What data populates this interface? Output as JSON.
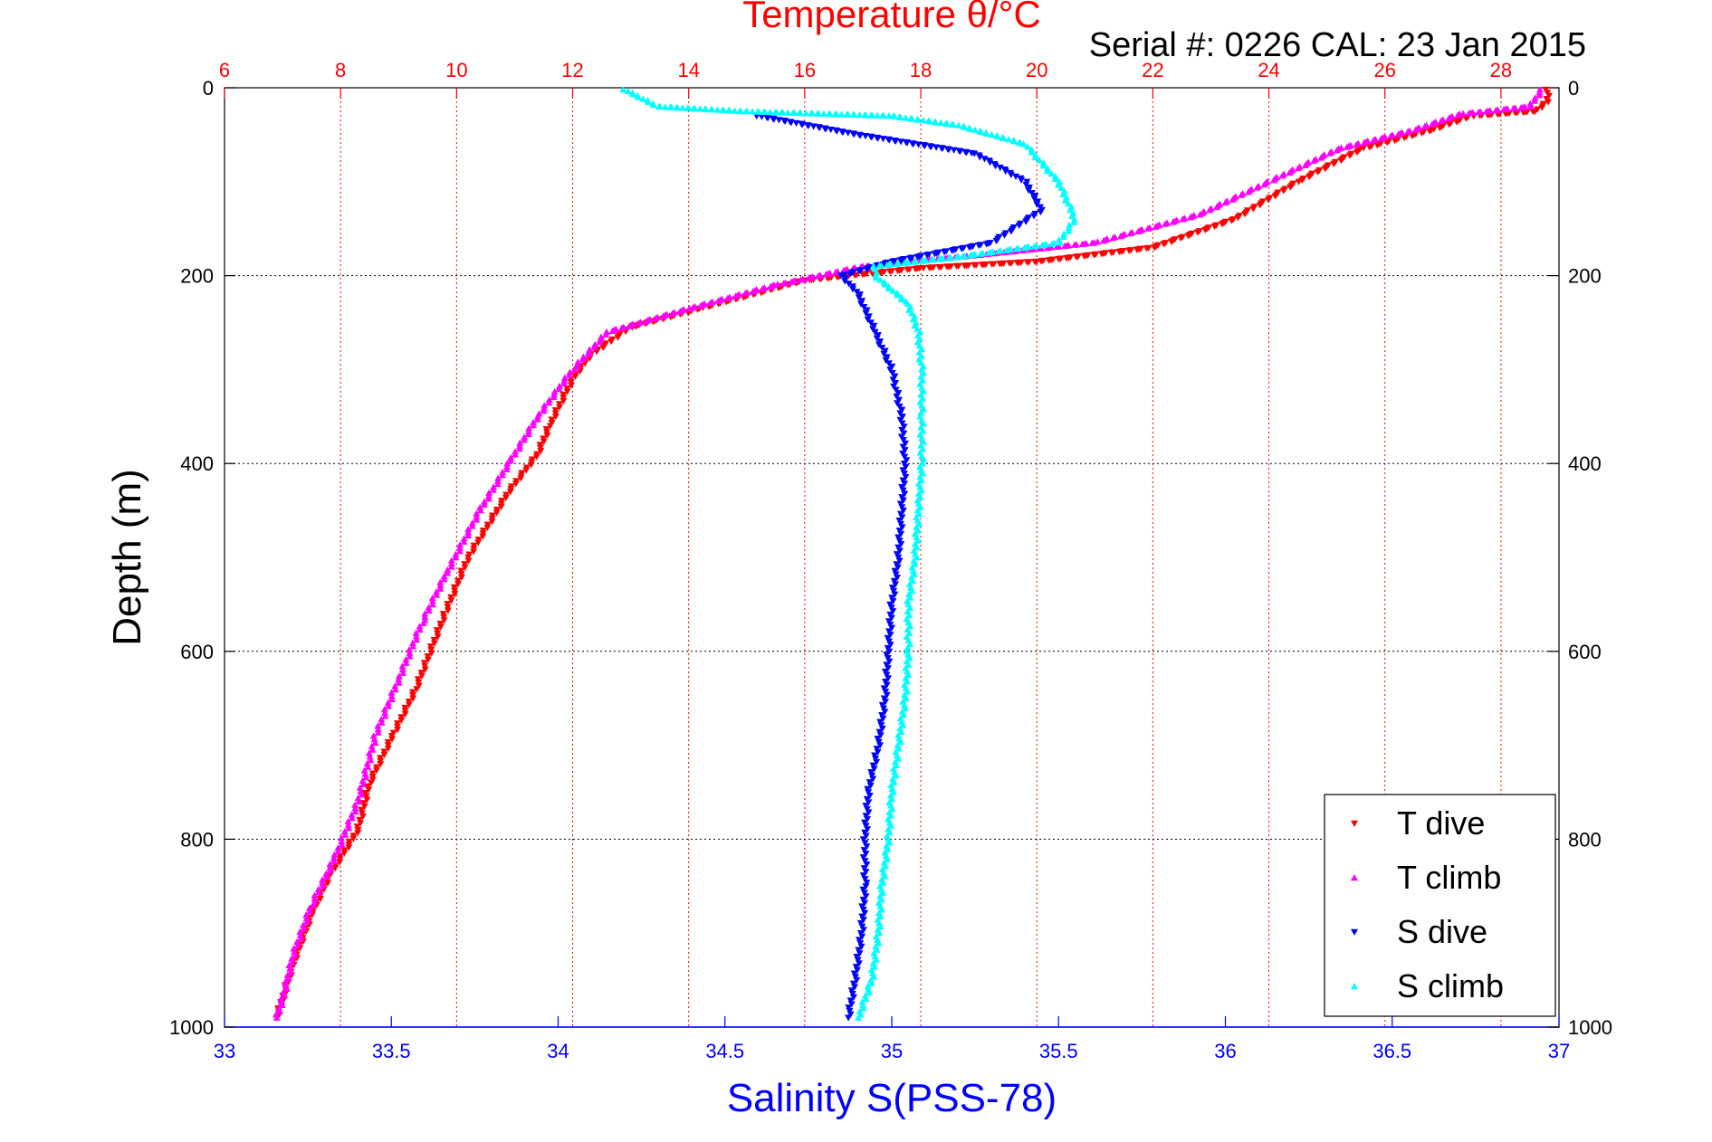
{
  "chart_data": {
    "type": "scatter",
    "title": "Temperature θ/°C",
    "subtitle": "Serial #: 0226  CAL: 23 Jan 2015",
    "xlabel": "Salinity S(PSS-78)",
    "ylabel": "Depth (m)",
    "x_bottom": {
      "label": "Salinity S(PSS-78)",
      "range": [
        33,
        37
      ],
      "ticks": [
        "33",
        "33.5",
        "34",
        "34.5",
        "35",
        "35.5",
        "36",
        "36.5",
        "37"
      ],
      "color": "#0000ff"
    },
    "x_top": {
      "label": "Temperature θ/°C",
      "range": [
        6,
        29
      ],
      "ticks": [
        "6",
        "8",
        "10",
        "12",
        "14",
        "16",
        "18",
        "20",
        "22",
        "24",
        "26",
        "28"
      ],
      "color": "#ff0000"
    },
    "y": {
      "label": "Depth (m)",
      "range": [
        0,
        1000
      ],
      "reversed": true,
      "ticks": [
        "0",
        "200",
        "400",
        "600",
        "800",
        "1000"
      ]
    },
    "grid": true,
    "legend_position": "bottom-right",
    "series": [
      {
        "name": "T dive",
        "axis": "temperature",
        "color": "#ff0000",
        "marker": "triangle-down",
        "points": [
          [
            28.8,
            2
          ],
          [
            28.8,
            15
          ],
          [
            28.6,
            25
          ],
          [
            27.5,
            30
          ],
          [
            26.8,
            45
          ],
          [
            25.6,
            65
          ],
          [
            24.5,
            100
          ],
          [
            23.4,
            140
          ],
          [
            22,
            170
          ],
          [
            20,
            185
          ],
          [
            18,
            192
          ],
          [
            16,
            205
          ],
          [
            14.2,
            235
          ],
          [
            13,
            255
          ],
          [
            12.3,
            285
          ],
          [
            12,
            310
          ],
          [
            11.6,
            360
          ],
          [
            11.4,
            390
          ],
          [
            10.9,
            430
          ],
          [
            10.2,
            500
          ],
          [
            9.8,
            560
          ],
          [
            9.3,
            640
          ],
          [
            8.9,
            690
          ],
          [
            8.5,
            740
          ],
          [
            8.3,
            790
          ],
          [
            7.8,
            840
          ],
          [
            7.5,
            880
          ],
          [
            7.2,
            930
          ],
          [
            7,
            970
          ],
          [
            6.9,
            990
          ]
        ]
      },
      {
        "name": "T climb",
        "axis": "temperature",
        "color": "#ff00ff",
        "marker": "triangle-up",
        "points": [
          [
            28.7,
            2
          ],
          [
            28.5,
            20
          ],
          [
            27.3,
            28
          ],
          [
            26.5,
            45
          ],
          [
            25.2,
            65
          ],
          [
            24,
            100
          ],
          [
            22.8,
            135
          ],
          [
            21,
            165
          ],
          [
            19,
            178
          ],
          [
            17,
            190
          ],
          [
            15.5,
            210
          ],
          [
            14,
            235
          ],
          [
            12.6,
            260
          ],
          [
            12,
            300
          ],
          [
            11.4,
            350
          ],
          [
            10.9,
            400
          ],
          [
            10.4,
            450
          ],
          [
            9.8,
            520
          ],
          [
            9.4,
            570
          ],
          [
            9,
            630
          ],
          [
            8.6,
            690
          ],
          [
            8.3,
            760
          ],
          [
            7.9,
            820
          ],
          [
            7.5,
            870
          ],
          [
            7.2,
            920
          ],
          [
            7,
            970
          ],
          [
            6.9,
            990
          ]
        ]
      },
      {
        "name": "S dive",
        "axis": "salinity",
        "color": "#0000ff",
        "marker": "triangle-down",
        "points": [
          [
            34.6,
            30
          ],
          [
            34.9,
            50
          ],
          [
            35.25,
            70
          ],
          [
            35.4,
            100
          ],
          [
            35.45,
            130
          ],
          [
            35.3,
            165
          ],
          [
            35.0,
            185
          ],
          [
            34.85,
            200
          ],
          [
            34.9,
            220
          ],
          [
            34.95,
            260
          ],
          [
            35.0,
            300
          ],
          [
            35.03,
            350
          ],
          [
            35.04,
            400
          ],
          [
            35.03,
            450
          ],
          [
            35.02,
            500
          ],
          [
            35.0,
            550
          ],
          [
            34.99,
            600
          ],
          [
            34.98,
            650
          ],
          [
            34.96,
            700
          ],
          [
            34.93,
            750
          ],
          [
            34.92,
            800
          ],
          [
            34.92,
            850
          ],
          [
            34.91,
            900
          ],
          [
            34.89,
            950
          ],
          [
            34.87,
            990
          ]
        ]
      },
      {
        "name": "S climb",
        "axis": "salinity",
        "color": "#00ffff",
        "marker": "triangle-up",
        "points": [
          [
            34.2,
            2
          ],
          [
            34.3,
            20
          ],
          [
            34.55,
            25
          ],
          [
            35.0,
            30
          ],
          [
            35.2,
            40
          ],
          [
            35.4,
            60
          ],
          [
            35.5,
            100
          ],
          [
            35.55,
            140
          ],
          [
            35.5,
            165
          ],
          [
            35.2,
            180
          ],
          [
            34.95,
            190
          ],
          [
            34.95,
            200
          ],
          [
            35.05,
            230
          ],
          [
            35.08,
            260
          ],
          [
            35.09,
            300
          ],
          [
            35.09,
            350
          ],
          [
            35.09,
            400
          ],
          [
            35.08,
            450
          ],
          [
            35.07,
            500
          ],
          [
            35.05,
            550
          ],
          [
            35.05,
            600
          ],
          [
            35.04,
            650
          ],
          [
            35.02,
            700
          ],
          [
            35.0,
            750
          ],
          [
            34.99,
            800
          ],
          [
            34.97,
            850
          ],
          [
            34.96,
            900
          ],
          [
            34.94,
            950
          ],
          [
            34.9,
            990
          ]
        ]
      }
    ]
  }
}
